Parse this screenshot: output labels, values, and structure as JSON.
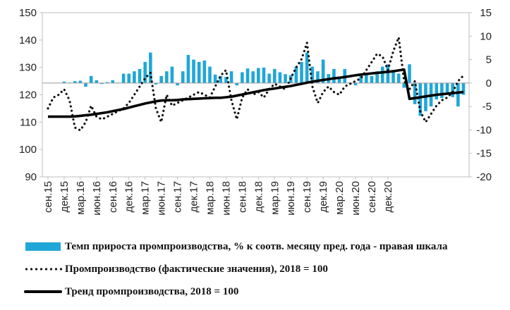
{
  "chart_data": {
    "type": "bar",
    "x_tick_labels": [
      "сен.15",
      "дек.15",
      "мар.16",
      "июн.16",
      "сен.16",
      "дек.16",
      "мар.17",
      "июн.17",
      "сен.17",
      "дек.17",
      "мар.18",
      "июн.18",
      "сен.18",
      "дек.18",
      "мар.19",
      "июн.19",
      "сен.19",
      "дек.19",
      "мар.20",
      "июн.20",
      "сен.20",
      "дек.20"
    ],
    "y_left": {
      "ylim": [
        90,
        150
      ],
      "ticks": [
        90,
        100,
        110,
        120,
        130,
        140,
        150
      ]
    },
    "y_right": {
      "ylim": [
        -20,
        15
      ],
      "ticks": [
        -20,
        -15,
        -10,
        -5,
        0,
        5,
        10,
        15
      ]
    },
    "series": [
      {
        "name": "Темп прироста  промпроизводства, % к соотв. месяцу пред. года - правая шкала",
        "kind": "bar",
        "axis": "right",
        "color": "#1fa7d8",
        "values": [
          0.3,
          0.1,
          0.4,
          0.5,
          -0.8,
          1.5,
          0.6,
          -0.2,
          0.2,
          0.6,
          0.1,
          2.0,
          2.0,
          2.5,
          3.0,
          4.5,
          6.5,
          -0.3,
          1.5,
          2.5,
          3.5,
          -0.5,
          2.5,
          6.0,
          5.0,
          4.5,
          4.8,
          3.5,
          1.8,
          1.5,
          1.3,
          2.5,
          -0.5,
          2.3,
          3.1,
          2.5,
          3.2,
          3.3,
          2.0,
          3.0,
          2.3,
          1.9,
          1.7,
          3.5,
          4.5,
          6.5,
          3.5,
          2.5,
          5.0,
          1.9,
          3.0,
          1.4,
          3.0,
          0.0,
          -0.5,
          2.0,
          2.0,
          1.5,
          2.5,
          3.5,
          4.0,
          2.3,
          2.0,
          -1.0,
          4.0,
          -4.5,
          -7.0,
          -6.0,
          -5.0,
          -3.5,
          -3.2,
          -2.0,
          -3.0,
          -5.0,
          -2.5
        ]
      },
      {
        "name": "Промпроизводство (фактические значения), 2018 = 100",
        "kind": "line",
        "style": "dotted",
        "axis": "left",
        "color": "#111111",
        "values": [
          115,
          119,
          120,
          122,
          118,
          108,
          107,
          110,
          116,
          112,
          111,
          112,
          113,
          114,
          115,
          117,
          120,
          123,
          126,
          128,
          115,
          110,
          120,
          116,
          117,
          118,
          119,
          120,
          121,
          120,
          119,
          123,
          127,
          129,
          118,
          111,
          119,
          122,
          120,
          121,
          119,
          122,
          124,
          123,
          122,
          126,
          130,
          133,
          139,
          123,
          117,
          121,
          123,
          121,
          120,
          123,
          124,
          125,
          126,
          129,
          132,
          135,
          134,
          129,
          136,
          141,
          125,
          122,
          125,
          114,
          110,
          113,
          116,
          118,
          119,
          121,
          125,
          127
        ]
      },
      {
        "name": "Тренд промпроизводства, 2018 = 100",
        "kind": "line",
        "style": "solid",
        "axis": "left",
        "color": "#000000",
        "values": [
          112,
          112,
          112,
          112,
          112,
          112.1,
          112.3,
          112.5,
          112.7,
          113,
          113.3,
          113.6,
          114,
          114.4,
          114.8,
          115.3,
          115.8,
          116.3,
          116.8,
          117.2,
          117.6,
          117.9,
          118,
          118,
          118.1,
          118.3,
          118.4,
          118.5,
          118.6,
          118.7,
          118.8,
          118.9,
          118.9,
          119.1,
          119.3,
          119.7,
          120.1,
          120.5,
          120.9,
          121.3,
          121.7,
          122,
          122.3,
          122.6,
          122.9,
          123.2,
          123.6,
          124,
          124.4,
          124.8,
          125.1,
          125.4,
          125.7,
          126,
          126.2,
          126.5,
          126.8,
          127.1,
          127.4,
          127.6,
          127.8,
          128,
          128.2,
          128.4,
          128.6,
          128.9,
          129.2,
          118.5,
          118.8,
          119.1,
          119.4,
          119.7,
          120,
          120.2,
          120.4,
          120.6,
          120.8,
          121
        ]
      }
    ],
    "grid": false,
    "legend_placement": "bottom"
  }
}
